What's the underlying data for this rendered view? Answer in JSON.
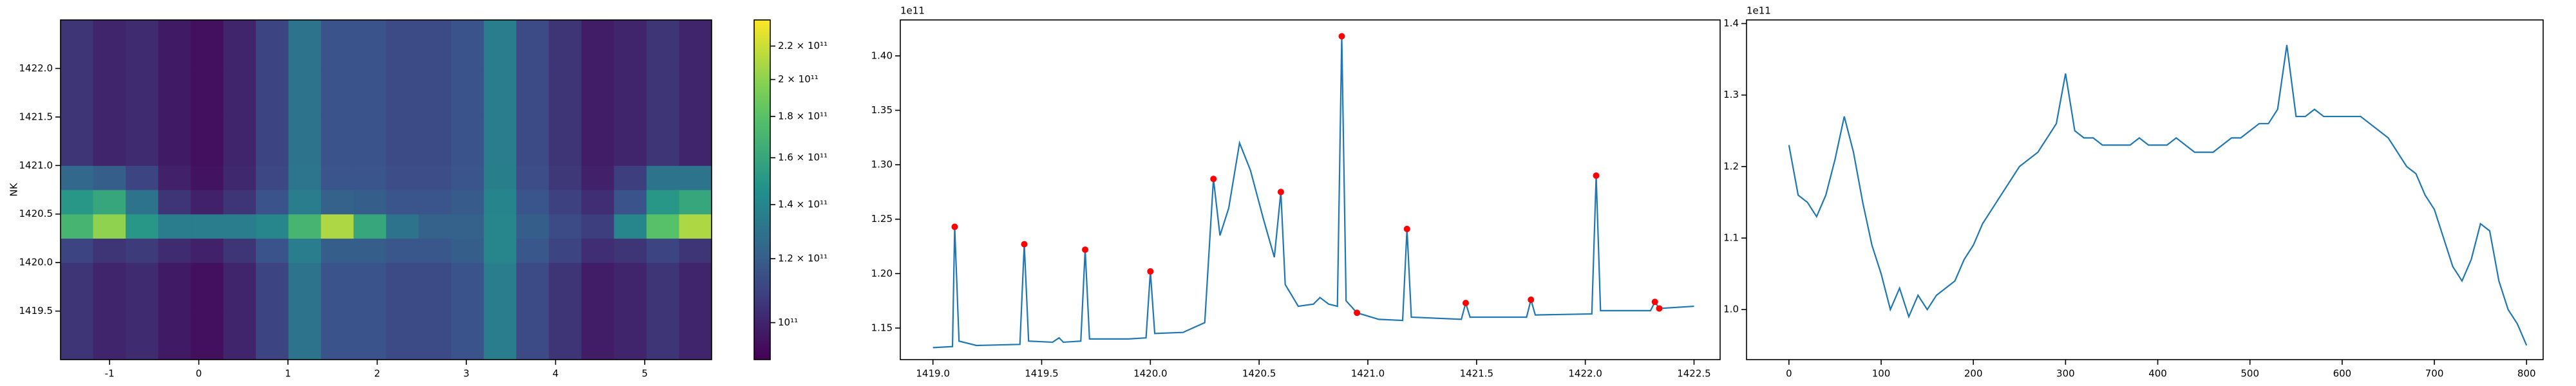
{
  "chart_data": [
    {
      "type": "heatmap",
      "ylabel": "NK",
      "xlim": [
        -1.55,
        5.75
      ],
      "ylim": [
        1419.0,
        1422.5
      ],
      "xticks": [
        -1,
        0,
        1,
        2,
        3,
        4,
        5
      ],
      "yticks": [
        1419.5,
        {
          "value": 1420,
          "label": "1420.0"
        },
        1420.5,
        {
          "value": 1421,
          "label": "1421.0"
        },
        1421.5,
        {
          "value": 1422,
          "label": "1422.0"
        }
      ],
      "x_edges": [
        -1.55,
        -1.185,
        -0.82,
        -0.455,
        -0.09,
        0.275,
        0.64,
        1.005,
        1.37,
        1.735,
        2.1,
        2.465,
        2.83,
        3.195,
        3.56,
        3.925,
        4.29,
        4.655,
        5.02,
        5.385,
        5.75
      ],
      "y_edges": [
        1419.0,
        1419.5,
        1420.0,
        1420.25,
        1420.5,
        1420.75,
        1421.0,
        1421.5,
        1422.0,
        1422.5
      ],
      "z": [
        [
          105000000000.0,
          100000000000.0,
          102000000000.0,
          97000000000.0,
          94000000000.0,
          100000000000.0,
          110000000000.0,
          130000000000.0,
          115000000000.0,
          115000000000.0,
          112000000000.0,
          112000000000.0,
          115000000000.0,
          135000000000.0,
          112000000000.0,
          105000000000.0,
          98000000000.0,
          100000000000.0,
          105000000000.0,
          100000000000.0
        ],
        [
          105000000000.0,
          100000000000.0,
          102000000000.0,
          97000000000.0,
          94000000000.0,
          100000000000.0,
          110000000000.0,
          130000000000.0,
          115000000000.0,
          115000000000.0,
          112000000000.0,
          112000000000.0,
          115000000000.0,
          135000000000.0,
          112000000000.0,
          105000000000.0,
          98000000000.0,
          100000000000.0,
          105000000000.0,
          100000000000.0
        ],
        [
          110000000000.0,
          105000000000.0,
          107000000000.0,
          102000000000.0,
          99000000000.0,
          105000000000.0,
          115000000000.0,
          135000000000.0,
          120000000000.0,
          120000000000.0,
          117000000000.0,
          117000000000.0,
          120000000000.0,
          140000000000.0,
          117000000000.0,
          110000000000.0,
          103000000000.0,
          105000000000.0,
          110000000000.0,
          105000000000.0
        ],
        [
          170000000000.0,
          200000000000.0,
          150000000000.0,
          135000000000.0,
          135000000000.0,
          135000000000.0,
          140000000000.0,
          170000000000.0,
          210000000000.0,
          160000000000.0,
          130000000000.0,
          122000000000.0,
          122000000000.0,
          140000000000.0,
          120000000000.0,
          112000000000.0,
          108000000000.0,
          140000000000.0,
          180000000000.0,
          210000000000.0
        ],
        [
          150000000000.0,
          160000000000.0,
          130000000000.0,
          105000000000.0,
          99000000000.0,
          105000000000.0,
          115000000000.0,
          135000000000.0,
          122000000000.0,
          120000000000.0,
          116000000000.0,
          116000000000.0,
          119000000000.0,
          139000000000.0,
          116000000000.0,
          109000000000.0,
          103000000000.0,
          115000000000.0,
          150000000000.0,
          160000000000.0
        ],
        [
          125000000000.0,
          120000000000.0,
          110000000000.0,
          99000000000.0,
          95000000000.0,
          101000000000.0,
          111000000000.0,
          131000000000.0,
          116000000000.0,
          116000000000.0,
          113000000000.0,
          113000000000.0,
          116000000000.0,
          136000000000.0,
          113000000000.0,
          106000000000.0,
          99000000000.0,
          108000000000.0,
          130000000000.0,
          130000000000.0
        ],
        [
          105000000000.0,
          100000000000.0,
          102000000000.0,
          97000000000.0,
          94000000000.0,
          100000000000.0,
          110000000000.0,
          130000000000.0,
          115000000000.0,
          115000000000.0,
          112000000000.0,
          112000000000.0,
          115000000000.0,
          135000000000.0,
          112000000000.0,
          105000000000.0,
          98000000000.0,
          100000000000.0,
          105000000000.0,
          100000000000.0
        ],
        [
          105000000000.0,
          100000000000.0,
          102000000000.0,
          97000000000.0,
          94000000000.0,
          100000000000.0,
          110000000000.0,
          130000000000.0,
          115000000000.0,
          115000000000.0,
          112000000000.0,
          112000000000.0,
          115000000000.0,
          135000000000.0,
          112000000000.0,
          105000000000.0,
          98000000000.0,
          100000000000.0,
          105000000000.0,
          100000000000.0
        ],
        [
          105000000000.0,
          100000000000.0,
          102000000000.0,
          97000000000.0,
          94000000000.0,
          100000000000.0,
          110000000000.0,
          130000000000.0,
          115000000000.0,
          115000000000.0,
          112000000000.0,
          112000000000.0,
          115000000000.0,
          135000000000.0,
          112000000000.0,
          105000000000.0,
          98000000000.0,
          100000000000.0,
          105000000000.0,
          100000000000.0
        ]
      ],
      "colormap": "viridis",
      "colorbar": {
        "log": true,
        "lim": [
          90000000000.0,
          237000000000.0
        ],
        "ticks": [
          {
            "value": 100000000000.0,
            "label": "10¹¹"
          },
          {
            "value": 120000000000.0,
            "label": "1.2 × 10¹¹"
          },
          {
            "value": 140000000000.0,
            "label": "1.4 × 10¹¹"
          },
          {
            "value": 160000000000.0,
            "label": "1.6 × 10¹¹"
          },
          {
            "value": 180000000000.0,
            "label": "1.8 × 10¹¹"
          },
          {
            "value": 200000000000.0,
            "label": "2 × 10¹¹"
          },
          {
            "value": 220000000000.0,
            "label": "2.2 × 10¹¹"
          }
        ]
      }
    },
    {
      "type": "line",
      "offset_text": "1e11",
      "xlim": [
        1418.85,
        1422.62
      ],
      "ylim": [
        1.121,
        1.433
      ],
      "xticks": [
        {
          "value": 1419,
          "label": "1419.0"
        },
        1419.5,
        {
          "value": 1420,
          "label": "1420.0"
        },
        1420.5,
        {
          "value": 1421,
          "label": "1421.0"
        },
        1421.5,
        {
          "value": 1422,
          "label": "1422.0"
        },
        1422.5
      ],
      "yticks": [
        1.15,
        {
          "value": 1.2,
          "label": "1.20"
        },
        1.25,
        {
          "value": 1.3,
          "label": "1.30"
        },
        1.35,
        {
          "value": 1.4,
          "label": "1.40"
        }
      ],
      "x": [
        1419.0,
        1419.09,
        1419.1,
        1419.12,
        1419.2,
        1419.4,
        1419.42,
        1419.44,
        1419.55,
        1419.58,
        1419.6,
        1419.68,
        1419.7,
        1419.72,
        1419.9,
        1419.98,
        1420.0,
        1420.02,
        1420.15,
        1420.25,
        1420.29,
        1420.32,
        1420.36,
        1420.41,
        1420.46,
        1420.52,
        1420.57,
        1420.6,
        1420.62,
        1420.68,
        1420.75,
        1420.78,
        1420.82,
        1420.86,
        1420.88,
        1420.9,
        1420.95,
        1421.05,
        1421.16,
        1421.18,
        1421.2,
        1421.43,
        1421.45,
        1421.47,
        1421.73,
        1421.75,
        1421.77,
        1422.03,
        1422.05,
        1422.07,
        1422.3,
        1422.32,
        1422.34,
        1422.5
      ],
      "series": [
        {
          "color": "#1f77b4",
          "values": [
            1.132,
            1.133,
            1.243,
            1.138,
            1.134,
            1.135,
            1.227,
            1.138,
            1.137,
            1.141,
            1.137,
            1.138,
            1.222,
            1.14,
            1.14,
            1.141,
            1.202,
            1.145,
            1.146,
            1.155,
            1.287,
            1.235,
            1.26,
            1.32,
            1.295,
            1.25,
            1.215,
            1.275,
            1.19,
            1.17,
            1.172,
            1.178,
            1.172,
            1.17,
            1.418,
            1.175,
            1.164,
            1.158,
            1.157,
            1.241,
            1.16,
            1.158,
            1.173,
            1.16,
            1.16,
            1.176,
            1.162,
            1.163,
            1.29,
            1.166,
            1.166,
            1.174,
            1.168,
            1.17
          ]
        }
      ],
      "markers": {
        "color": "#ff0000",
        "x": [
          1419.1,
          1419.42,
          1419.7,
          1420.0,
          1420.29,
          1420.6,
          1420.88,
          1420.95,
          1421.18,
          1421.45,
          1421.75,
          1422.05,
          1422.32,
          1422.34
        ],
        "values": [
          1.243,
          1.227,
          1.222,
          1.202,
          1.287,
          1.275,
          1.418,
          1.164,
          1.241,
          1.173,
          1.176,
          1.29,
          1.174,
          1.168
        ]
      }
    },
    {
      "type": "line",
      "offset_text": "1e11",
      "xlim": [
        -46,
        818
      ],
      "ylim": [
        0.93,
        1.405
      ],
      "xticks": [
        0,
        100,
        200,
        300,
        400,
        500,
        600,
        700,
        800
      ],
      "yticks": [
        {
          "value": 1.0,
          "label": "1.0"
        },
        1.1,
        1.2,
        1.3,
        1.4
      ],
      "x": [
        0,
        10,
        20,
        30,
        40,
        50,
        60,
        70,
        80,
        90,
        100,
        110,
        120,
        130,
        140,
        150,
        160,
        170,
        180,
        190,
        200,
        210,
        220,
        230,
        240,
        250,
        260,
        270,
        280,
        290,
        300,
        310,
        320,
        330,
        340,
        350,
        360,
        370,
        380,
        390,
        400,
        410,
        420,
        430,
        440,
        450,
        460,
        470,
        480,
        490,
        500,
        510,
        520,
        530,
        540,
        550,
        560,
        570,
        580,
        590,
        600,
        610,
        620,
        630,
        640,
        650,
        660,
        670,
        680,
        690,
        700,
        710,
        720,
        730,
        740,
        750,
        760,
        770,
        780,
        790,
        800
      ],
      "series": [
        {
          "color": "#1f77b4",
          "values": [
            1.23,
            1.16,
            1.15,
            1.13,
            1.16,
            1.21,
            1.27,
            1.22,
            1.15,
            1.09,
            1.05,
            1.0,
            1.03,
            0.99,
            1.02,
            1.0,
            1.02,
            1.03,
            1.04,
            1.07,
            1.09,
            1.12,
            1.14,
            1.16,
            1.18,
            1.2,
            1.21,
            1.22,
            1.24,
            1.26,
            1.33,
            1.25,
            1.24,
            1.24,
            1.23,
            1.23,
            1.23,
            1.23,
            1.24,
            1.23,
            1.23,
            1.23,
            1.24,
            1.23,
            1.22,
            1.22,
            1.22,
            1.23,
            1.24,
            1.24,
            1.25,
            1.26,
            1.26,
            1.28,
            1.37,
            1.27,
            1.27,
            1.28,
            1.27,
            1.27,
            1.27,
            1.27,
            1.27,
            1.26,
            1.25,
            1.24,
            1.22,
            1.2,
            1.19,
            1.16,
            1.14,
            1.1,
            1.06,
            1.04,
            1.07,
            1.12,
            1.11,
            1.04,
            1.0,
            0.98,
            0.95
          ]
        }
      ]
    }
  ]
}
